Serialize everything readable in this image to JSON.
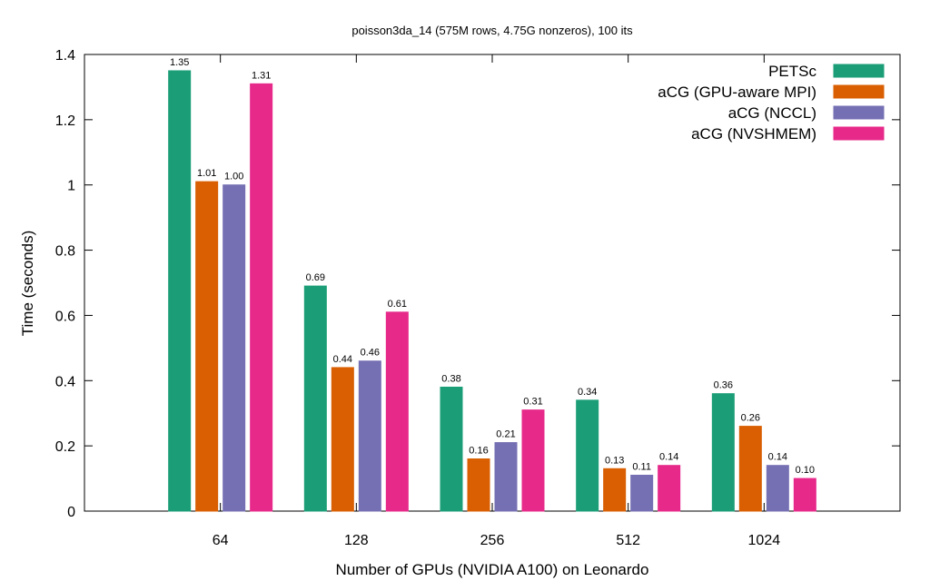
{
  "chart_data": {
    "type": "bar",
    "title": "poisson3da_14 (575M rows, 4.75G nonzeros), 100 its",
    "xlabel": "Number of GPUs (NVIDIA A100) on Leonardo",
    "ylabel": "Time (seconds)",
    "ylim": [
      0,
      1.4
    ],
    "yticks": [
      "0",
      "0.2",
      "0.4",
      "0.6",
      "0.8",
      "1",
      "1.2",
      "1.4"
    ],
    "categories": [
      "64",
      "128",
      "256",
      "512",
      "1024"
    ],
    "legend_position": "top-right",
    "series": [
      {
        "name": "PETSc",
        "color": "#1b9e77",
        "values": [
          1.35,
          0.69,
          0.38,
          0.34,
          0.36
        ],
        "labels": [
          "1.35",
          "0.69",
          "0.38",
          "0.34",
          "0.36"
        ]
      },
      {
        "name": "aCG (GPU-aware MPI)",
        "color": "#d95f02",
        "values": [
          1.01,
          0.44,
          0.16,
          0.13,
          0.26
        ],
        "labels": [
          "1.01",
          "0.44",
          "0.16",
          "0.13",
          "0.26"
        ]
      },
      {
        "name": "aCG (NCCL)",
        "color": "#7570b3",
        "values": [
          1.0,
          0.46,
          0.21,
          0.11,
          0.14
        ],
        "labels": [
          "1.00",
          "0.46",
          "0.21",
          "0.11",
          "0.14"
        ]
      },
      {
        "name": "aCG (NVSHMEM)",
        "color": "#e7298a",
        "values": [
          1.31,
          0.61,
          0.31,
          0.14,
          0.1
        ],
        "labels": [
          "1.31",
          "0.61",
          "0.31",
          "0.14",
          "0.10"
        ]
      }
    ]
  }
}
